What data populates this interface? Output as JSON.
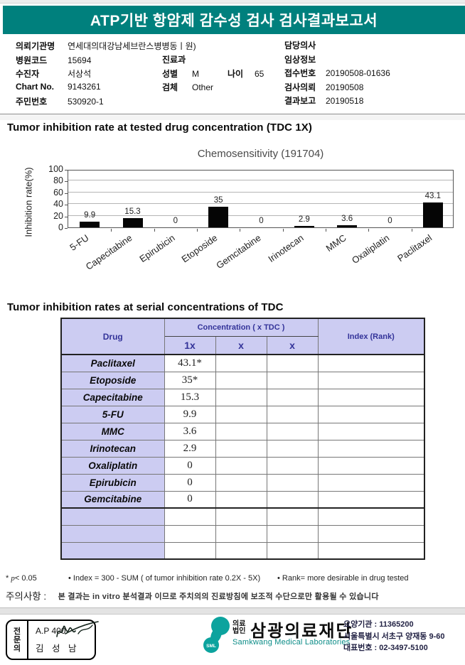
{
  "header": {
    "title": "ATP기반 항암제 감수성 검사 검사결과보고서"
  },
  "patient": {
    "left": [
      {
        "label": "의뢰기관명",
        "value": "연세대의대강남세브란스병병동ㅣ원)"
      },
      {
        "label": "병원코드",
        "value": "15694"
      },
      {
        "label": "수진자",
        "value": "서상석"
      },
      {
        "label": "Chart No.",
        "value": "9143261"
      },
      {
        "label": "주민번호",
        "value": "530920-1"
      }
    ],
    "mid": {
      "dept_label": "진료과",
      "dept_value": "",
      "sex_label": "성별",
      "sex_value": "M",
      "age_label": "나이",
      "age_value": "65",
      "specimen_label": "검체",
      "specimen_value": "Other"
    },
    "right": [
      {
        "label": "담당의사",
        "value": ""
      },
      {
        "label": "임상정보",
        "value": ""
      },
      {
        "label": "접수번호",
        "value": "20190508-01636"
      },
      {
        "label": "검사의뢰",
        "value": "20190508"
      },
      {
        "label": "결과보고",
        "value": "20190518"
      }
    ]
  },
  "section1": {
    "heading": "Tumor inhibition rate at tested drug concentration (TDC 1X)"
  },
  "chart_data": {
    "type": "bar",
    "title": "Chemosensitivity (191704)",
    "ylabel": "Inhibition rate(%)",
    "categories": [
      "5-FU",
      "Capecitabine",
      "Epirubicin",
      "Etoposide",
      "Gemcitabine",
      "Irinotecan",
      "MMC",
      "Oxaliplatin",
      "Paclitaxel"
    ],
    "values": [
      9.9,
      15.3,
      0,
      35,
      0,
      2.9,
      3.6,
      0,
      43.1
    ],
    "ylim": [
      0,
      100
    ],
    "yticks": [
      0,
      20,
      40,
      60,
      80,
      100
    ],
    "grid": true,
    "bar_color": "#050505",
    "legend": "none"
  },
  "section2": {
    "heading": "Tumor inhibition rates at serial concentrations of TDC"
  },
  "table": {
    "col_drug": "Drug",
    "col_conc_group": "Concentration ( x TDC )",
    "col_conc": [
      "1x",
      "x",
      "x"
    ],
    "col_index": "Index (Rank)",
    "rows": [
      {
        "drug": "Paclitaxel",
        "c1": "43.1*",
        "c2": "",
        "c3": "",
        "index": ""
      },
      {
        "drug": "Etoposide",
        "c1": "35*",
        "c2": "",
        "c3": "",
        "index": ""
      },
      {
        "drug": "Capecitabine",
        "c1": "15.3",
        "c2": "",
        "c3": "",
        "index": ""
      },
      {
        "drug": "5-FU",
        "c1": "9.9",
        "c2": "",
        "c3": "",
        "index": ""
      },
      {
        "drug": "MMC",
        "c1": "3.6",
        "c2": "",
        "c3": "",
        "index": ""
      },
      {
        "drug": "Irinotecan",
        "c1": "2.9",
        "c2": "",
        "c3": "",
        "index": ""
      },
      {
        "drug": "Oxaliplatin",
        "c1": "0",
        "c2": "",
        "c3": "",
        "index": ""
      },
      {
        "drug": "Epirubicin",
        "c1": "0",
        "c2": "",
        "c3": "",
        "index": ""
      },
      {
        "drug": "Gemcitabine",
        "c1": "0",
        "c2": "",
        "c3": "",
        "index": ""
      },
      {
        "drug": "",
        "c1": "",
        "c2": "",
        "c3": "",
        "index": ""
      },
      {
        "drug": "",
        "c1": "",
        "c2": "",
        "c3": "",
        "index": ""
      },
      {
        "drug": "",
        "c1": "",
        "c2": "",
        "c3": "",
        "index": ""
      }
    ]
  },
  "footnotes": {
    "p_star": "*",
    "p_sym": "p",
    "p_val": "< 0.05",
    "index_note": "• Index = 300 - SUM ( of tumor inhibition rate 0.2X - 5X)",
    "rank_note": "• Rank= more desirable in drug tested",
    "caution_label": "주의사항 :",
    "caution_text": "본 결과는 in vitro 분석결과 이므로 주치의의 진료방침에 보조적 수단으로만 활용될 수 있습니다"
  },
  "footer": {
    "sign_role": "전\n문\n의",
    "sign_code": "A.P 400",
    "sign_name": "김 성 남",
    "logo_text": "SML",
    "org_type": "의료\n법인",
    "org_name": "삼광의료재단",
    "org_name_en": "Samkwang Medical Laboratories",
    "reg": "요양기관 : 11365200",
    "address": "서울특별시 서초구 양재동 9-60",
    "tel": "대표번호 : 02-3497-5100"
  },
  "colors": {
    "title_bar": "#00807d",
    "table_header_bg": "#ccccf2",
    "table_header_text": "#333399",
    "bar": "#050505",
    "logo_teal": "#0ca39e"
  }
}
